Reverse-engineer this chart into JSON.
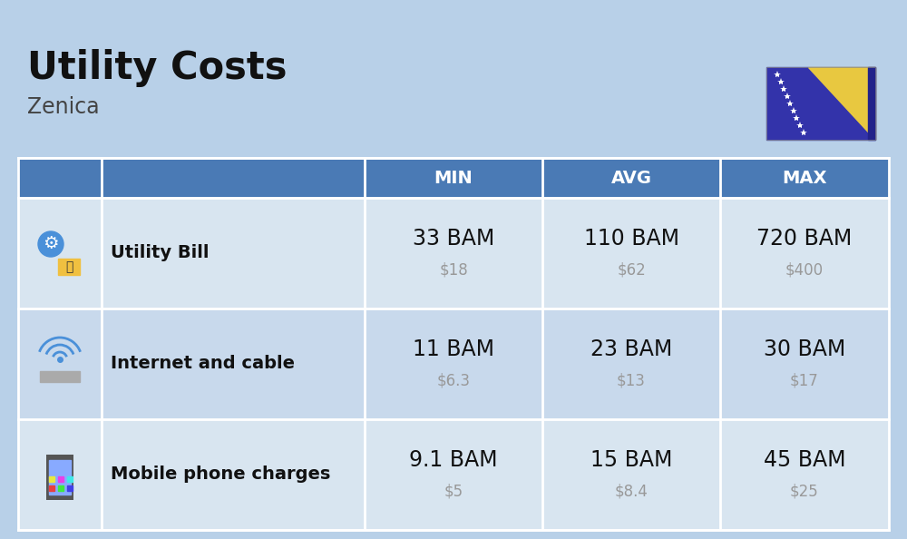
{
  "title": "Utility Costs",
  "subtitle": "Zenica",
  "background_color": "#b8d0e8",
  "header_color": "#4a7ab5",
  "header_text_color": "#ffffff",
  "row_color": "#c8d9ec",
  "row_color_alt": "#d8e5f0",
  "table_border_color": "#ffffff",
  "col_headers": [
    "MIN",
    "AVG",
    "MAX"
  ],
  "rows": [
    {
      "label": "Utility Bill",
      "min_bam": "33 BAM",
      "min_usd": "$18",
      "avg_bam": "110 BAM",
      "avg_usd": "$62",
      "max_bam": "720 BAM",
      "max_usd": "$400",
      "icon": "utility"
    },
    {
      "label": "Internet and cable",
      "min_bam": "11 BAM",
      "min_usd": "$6.3",
      "avg_bam": "23 BAM",
      "avg_usd": "$13",
      "max_bam": "30 BAM",
      "max_usd": "$17",
      "icon": "internet"
    },
    {
      "label": "Mobile phone charges",
      "min_bam": "9.1 BAM",
      "min_usd": "$5",
      "avg_bam": "15 BAM",
      "avg_usd": "$8.4",
      "max_bam": "45 BAM",
      "max_usd": "$25",
      "icon": "mobile"
    }
  ],
  "title_fontsize": 30,
  "subtitle_fontsize": 17,
  "header_fontsize": 14,
  "label_fontsize": 14,
  "value_fontsize": 17,
  "usd_fontsize": 12,
  "usd_color": "#999999",
  "text_color": "#111111",
  "flag_blue": "#3333aa",
  "flag_yellow": "#e8c840",
  "flag_dark_blue": "#22228a"
}
